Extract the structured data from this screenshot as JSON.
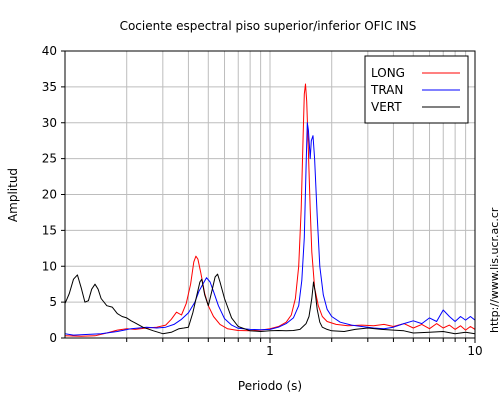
{
  "chart_data": {
    "type": "line",
    "title": "Cociente espectral piso superior/inferior  OFIC INS",
    "xlabel": "Periodo (s)",
    "ylabel": "Amplitud",
    "x_scale": "log",
    "xlim": [
      0.1,
      10
    ],
    "ylim": [
      0,
      40
    ],
    "xticks": [
      {
        "value": 1,
        "label": "1"
      },
      {
        "value": 10,
        "label": "10"
      }
    ],
    "yticks": [
      0,
      5,
      10,
      15,
      20,
      25,
      30,
      35,
      40
    ],
    "grid": true,
    "legend_position": "top-right",
    "series": [
      {
        "name": "LONG",
        "color": "#ff0000",
        "points": [
          [
            0.1,
            0.3
          ],
          [
            0.12,
            0.25
          ],
          [
            0.14,
            0.3
          ],
          [
            0.16,
            0.7
          ],
          [
            0.18,
            1.1
          ],
          [
            0.2,
            1.3
          ],
          [
            0.22,
            1.2
          ],
          [
            0.25,
            1.4
          ],
          [
            0.28,
            1.5
          ],
          [
            0.31,
            1.8
          ],
          [
            0.33,
            2.6
          ],
          [
            0.35,
            3.6
          ],
          [
            0.37,
            3.2
          ],
          [
            0.39,
            4.8
          ],
          [
            0.41,
            7.5
          ],
          [
            0.425,
            10.6
          ],
          [
            0.435,
            11.4
          ],
          [
            0.445,
            11.0
          ],
          [
            0.46,
            9.0
          ],
          [
            0.48,
            6.2
          ],
          [
            0.5,
            4.5
          ],
          [
            0.53,
            3.0
          ],
          [
            0.57,
            1.9
          ],
          [
            0.62,
            1.3
          ],
          [
            0.7,
            1.05
          ],
          [
            0.8,
            1.0
          ],
          [
            0.9,
            1.1
          ],
          [
            1.0,
            1.3
          ],
          [
            1.1,
            1.6
          ],
          [
            1.2,
            2.2
          ],
          [
            1.27,
            3.2
          ],
          [
            1.33,
            5.5
          ],
          [
            1.38,
            10.0
          ],
          [
            1.42,
            18.0
          ],
          [
            1.45,
            28.0
          ],
          [
            1.47,
            34.0
          ],
          [
            1.49,
            35.4
          ],
          [
            1.51,
            33.0
          ],
          [
            1.54,
            26.0
          ],
          [
            1.57,
            18.0
          ],
          [
            1.6,
            12.0
          ],
          [
            1.65,
            7.0
          ],
          [
            1.72,
            4.5
          ],
          [
            1.8,
            3.0
          ],
          [
            1.9,
            2.3
          ],
          [
            2.1,
            1.9
          ],
          [
            2.4,
            1.7
          ],
          [
            2.8,
            1.8
          ],
          [
            3.2,
            1.7
          ],
          [
            3.6,
            1.9
          ],
          [
            4.0,
            1.6
          ],
          [
            4.5,
            2.0
          ],
          [
            5.0,
            1.4
          ],
          [
            5.5,
            1.9
          ],
          [
            6.0,
            1.3
          ],
          [
            6.5,
            2.0
          ],
          [
            7.0,
            1.4
          ],
          [
            7.5,
            1.8
          ],
          [
            8.0,
            1.2
          ],
          [
            8.5,
            1.7
          ],
          [
            9.0,
            1.1
          ],
          [
            9.5,
            1.6
          ],
          [
            10,
            1.2
          ]
        ]
      },
      {
        "name": "TRAN",
        "color": "#0000ff",
        "points": [
          [
            0.1,
            0.6
          ],
          [
            0.11,
            0.4
          ],
          [
            0.13,
            0.5
          ],
          [
            0.15,
            0.6
          ],
          [
            0.18,
            0.9
          ],
          [
            0.21,
            1.3
          ],
          [
            0.25,
            1.5
          ],
          [
            0.28,
            1.4
          ],
          [
            0.31,
            1.5
          ],
          [
            0.34,
            1.9
          ],
          [
            0.37,
            2.6
          ],
          [
            0.4,
            3.5
          ],
          [
            0.43,
            5.0
          ],
          [
            0.45,
            6.5
          ],
          [
            0.47,
            7.5
          ],
          [
            0.49,
            8.4
          ],
          [
            0.51,
            7.8
          ],
          [
            0.53,
            6.5
          ],
          [
            0.56,
            4.5
          ],
          [
            0.6,
            2.7
          ],
          [
            0.65,
            1.8
          ],
          [
            0.7,
            1.35
          ],
          [
            0.8,
            1.2
          ],
          [
            0.9,
            1.15
          ],
          [
            1.0,
            1.2
          ],
          [
            1.1,
            1.5
          ],
          [
            1.2,
            2.0
          ],
          [
            1.3,
            2.8
          ],
          [
            1.38,
            4.5
          ],
          [
            1.43,
            8.0
          ],
          [
            1.47,
            14.0
          ],
          [
            1.5,
            24.0
          ],
          [
            1.52,
            30.0
          ],
          [
            1.54,
            29.0
          ],
          [
            1.57,
            25.0
          ],
          [
            1.59,
            27.5
          ],
          [
            1.62,
            28.2
          ],
          [
            1.65,
            25.0
          ],
          [
            1.7,
            17.0
          ],
          [
            1.75,
            10.0
          ],
          [
            1.82,
            6.0
          ],
          [
            1.9,
            4.0
          ],
          [
            2.0,
            3.0
          ],
          [
            2.2,
            2.2
          ],
          [
            2.5,
            1.8
          ],
          [
            2.8,
            1.6
          ],
          [
            3.2,
            1.4
          ],
          [
            3.6,
            1.3
          ],
          [
            4.0,
            1.5
          ],
          [
            4.5,
            2.0
          ],
          [
            5.0,
            2.4
          ],
          [
            5.5,
            2.0
          ],
          [
            6.0,
            2.8
          ],
          [
            6.5,
            2.3
          ],
          [
            7.0,
            3.9
          ],
          [
            7.5,
            3.0
          ],
          [
            8.0,
            2.3
          ],
          [
            8.5,
            3.0
          ],
          [
            9.0,
            2.5
          ],
          [
            9.5,
            3.0
          ],
          [
            10,
            2.5
          ]
        ]
      },
      {
        "name": "VERT",
        "color": "#000000",
        "points": [
          [
            0.1,
            4.8
          ],
          [
            0.105,
            6.2
          ],
          [
            0.11,
            8.2
          ],
          [
            0.115,
            8.8
          ],
          [
            0.12,
            7.0
          ],
          [
            0.125,
            5.0
          ],
          [
            0.13,
            5.2
          ],
          [
            0.135,
            6.8
          ],
          [
            0.14,
            7.5
          ],
          [
            0.145,
            6.8
          ],
          [
            0.15,
            5.5
          ],
          [
            0.16,
            4.5
          ],
          [
            0.17,
            4.3
          ],
          [
            0.18,
            3.4
          ],
          [
            0.19,
            3.0
          ],
          [
            0.2,
            2.8
          ],
          [
            0.21,
            2.4
          ],
          [
            0.22,
            2.1
          ],
          [
            0.24,
            1.5
          ],
          [
            0.27,
            1.0
          ],
          [
            0.3,
            0.6
          ],
          [
            0.33,
            0.8
          ],
          [
            0.36,
            1.3
          ],
          [
            0.38,
            1.4
          ],
          [
            0.4,
            1.5
          ],
          [
            0.42,
            3.5
          ],
          [
            0.44,
            6.0
          ],
          [
            0.455,
            7.8
          ],
          [
            0.465,
            8.2
          ],
          [
            0.48,
            6.0
          ],
          [
            0.5,
            4.5
          ],
          [
            0.52,
            6.5
          ],
          [
            0.54,
            8.5
          ],
          [
            0.555,
            8.9
          ],
          [
            0.57,
            7.8
          ],
          [
            0.6,
            5.5
          ],
          [
            0.65,
            2.8
          ],
          [
            0.7,
            1.6
          ],
          [
            0.8,
            1.0
          ],
          [
            0.9,
            0.9
          ],
          [
            1.0,
            1.0
          ],
          [
            1.1,
            1.05
          ],
          [
            1.2,
            1.0
          ],
          [
            1.3,
            1.05
          ],
          [
            1.4,
            1.2
          ],
          [
            1.5,
            2.0
          ],
          [
            1.55,
            3.0
          ],
          [
            1.6,
            5.5
          ],
          [
            1.63,
            7.8
          ],
          [
            1.66,
            6.5
          ],
          [
            1.7,
            4.0
          ],
          [
            1.75,
            2.2
          ],
          [
            1.8,
            1.5
          ],
          [
            1.9,
            1.2
          ],
          [
            2.0,
            1.0
          ],
          [
            2.3,
            0.9
          ],
          [
            2.6,
            1.2
          ],
          [
            3.0,
            1.4
          ],
          [
            3.5,
            1.2
          ],
          [
            4.0,
            1.1
          ],
          [
            4.5,
            1.0
          ],
          [
            5.0,
            0.7
          ],
          [
            6.0,
            0.8
          ],
          [
            7.0,
            0.9
          ],
          [
            8.0,
            0.6
          ],
          [
            9.0,
            0.8
          ],
          [
            10,
            0.6
          ]
        ]
      }
    ]
  },
  "side_text": "http://www.lis.ucr.ac.cr"
}
